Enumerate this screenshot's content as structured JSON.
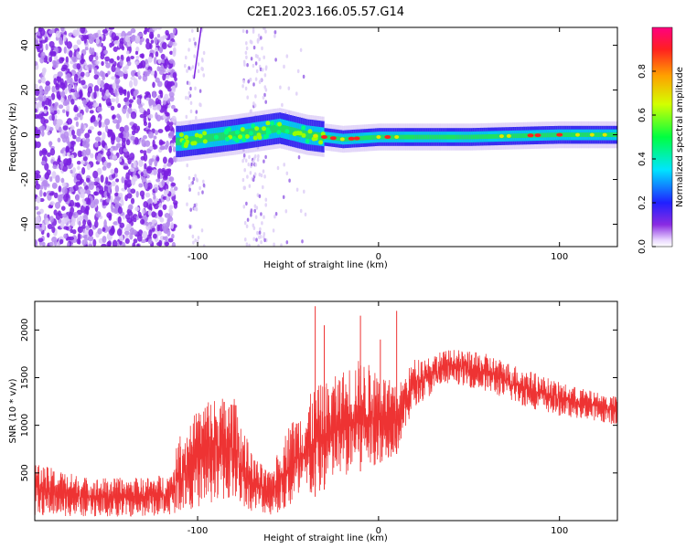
{
  "title": "C2E1.2023.166.05.57.G14",
  "chart_data": [
    {
      "type": "heatmap",
      "xlabel": "Height of straight line (km)",
      "ylabel": "Frequency (Hz)",
      "xlim": [
        -190,
        132
      ],
      "ylim": [
        -50,
        48
      ],
      "xticks": [
        -100,
        0,
        100
      ],
      "yticks": [
        -40,
        -20,
        0,
        20,
        40
      ],
      "colorbar": {
        "label": "Normalized spectral amplitude",
        "range": [
          0,
          1
        ],
        "ticks": [
          "0.0",
          "0.2",
          "0.4",
          "0.6",
          "0.8"
        ],
        "colormap": "rainbow (white-purple-blue-cyan-green-yellow-orange-red)"
      },
      "features": {
        "noise_region_x": [
          -190,
          -112
        ],
        "signal_band_center_hz": [
          {
            "x": -110,
            "hz": -3
          },
          {
            "x": -80,
            "hz": 0
          },
          {
            "x": -55,
            "hz": 3
          },
          {
            "x": -40,
            "hz": 0
          },
          {
            "x": -20,
            "hz": -2
          },
          {
            "x": 0,
            "hz": -1
          },
          {
            "x": 50,
            "hz": -1
          },
          {
            "x": 100,
            "hz": 0
          },
          {
            "x": 130,
            "hz": 0
          }
        ]
      }
    },
    {
      "type": "line",
      "xlabel": "Height of straight line (km)",
      "ylabel": "SNR (10 * v/v)",
      "xlim": [
        -190,
        132
      ],
      "ylim": [
        0,
        2300
      ],
      "xticks": [
        -100,
        0,
        100
      ],
      "yticks": [
        500,
        1000,
        1500,
        2000
      ],
      "color": "#ee3333",
      "envelope": [
        {
          "x": -190,
          "lo": 50,
          "hi": 600
        },
        {
          "x": -160,
          "lo": 40,
          "hi": 450
        },
        {
          "x": -130,
          "lo": 40,
          "hi": 450
        },
        {
          "x": -115,
          "lo": 60,
          "hi": 500
        },
        {
          "x": -110,
          "lo": 100,
          "hi": 900
        },
        {
          "x": -95,
          "lo": 150,
          "hi": 1300
        },
        {
          "x": -80,
          "lo": 200,
          "hi": 1300
        },
        {
          "x": -70,
          "lo": 100,
          "hi": 700
        },
        {
          "x": -60,
          "lo": 60,
          "hi": 500
        },
        {
          "x": -50,
          "lo": 100,
          "hi": 1000
        },
        {
          "x": -35,
          "lo": 250,
          "hi": 1400
        },
        {
          "x": -25,
          "lo": 400,
          "hi": 1500
        },
        {
          "x": -12,
          "lo": 500,
          "hi": 1700
        },
        {
          "x": 0,
          "lo": 600,
          "hi": 1600
        },
        {
          "x": 10,
          "lo": 700,
          "hi": 1400
        },
        {
          "x": 20,
          "lo": 1200,
          "hi": 1700
        },
        {
          "x": 40,
          "lo": 1450,
          "hi": 1800
        },
        {
          "x": 60,
          "lo": 1350,
          "hi": 1750
        },
        {
          "x": 80,
          "lo": 1200,
          "hi": 1600
        },
        {
          "x": 100,
          "lo": 1100,
          "hi": 1450
        },
        {
          "x": 120,
          "lo": 1050,
          "hi": 1350
        },
        {
          "x": 132,
          "lo": 1000,
          "hi": 1300
        }
      ],
      "peaks": [
        {
          "x": -35,
          "y": 2250
        },
        {
          "x": -10,
          "y": 2150
        },
        {
          "x": 10,
          "y": 2200
        },
        {
          "x": -30,
          "y": 2050
        },
        {
          "x": 1,
          "y": 1900
        }
      ]
    }
  ]
}
